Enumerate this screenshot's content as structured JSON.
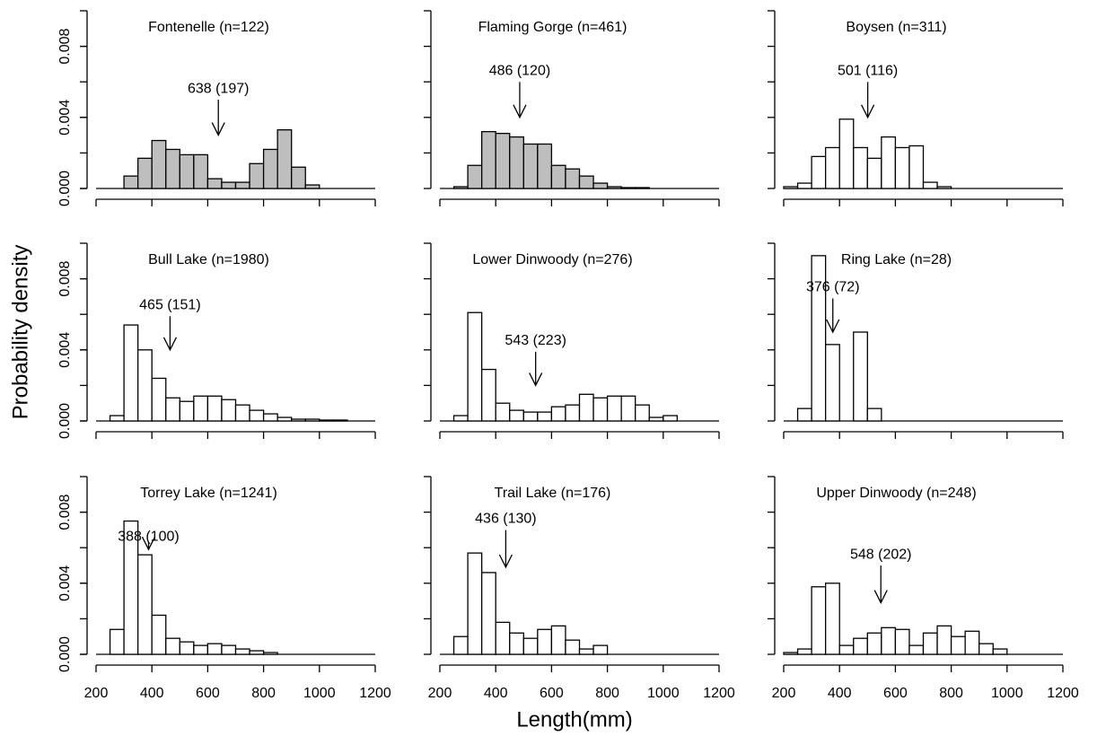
{
  "ylabel": "Probability density",
  "xlabel": "Length(mm)",
  "chart_data": [
    {
      "type": "histogram",
      "title": "Fontenelle (n=122)",
      "color": "#bebebe",
      "bins": [
        300,
        350,
        400,
        450,
        500,
        550,
        600,
        650,
        700,
        750,
        800,
        850,
        900,
        950,
        1000
      ],
      "values": [
        0.0007,
        0.0017,
        0.0027,
        0.0022,
        0.0019,
        0.0019,
        0.00055,
        0.00035,
        0.00035,
        0.0014,
        0.0022,
        0.0033,
        0.0012,
        0.0002
      ],
      "annotation": {
        "text": "638 (197)",
        "x": 638,
        "text_y": 0.0056,
        "tip_y": 0.003
      },
      "xlim": [
        200,
        1200
      ],
      "ylim": [
        0,
        0.01
      ],
      "xtickmarks": [
        200,
        400,
        600,
        800,
        1000,
        1200
      ],
      "ytickmarks": [
        0,
        0.002,
        0.004,
        0.006,
        0.008,
        0.01
      ],
      "yticks": [
        {
          "value": 0,
          "label": "0.000"
        },
        {
          "value": 0.004,
          "label": "0.004"
        },
        {
          "value": 0.008,
          "label": "0.008"
        }
      ]
    },
    {
      "type": "histogram",
      "title": "Flaming Gorge (n=461)",
      "color": "#bebebe",
      "bins": [
        250,
        300,
        350,
        400,
        450,
        500,
        550,
        600,
        650,
        700,
        750,
        800,
        850,
        900,
        950
      ],
      "values": [
        0.0001,
        0.0013,
        0.0032,
        0.0031,
        0.0029,
        0.0025,
        0.0025,
        0.0013,
        0.0011,
        0.0007,
        0.0003,
        0.0001,
        5e-05,
        5e-05
      ],
      "annotation": {
        "text": "486 (120)",
        "x": 486,
        "text_y": 0.0066,
        "tip_y": 0.004
      },
      "xlim": [
        200,
        1200
      ],
      "ylim": [
        0,
        0.01
      ],
      "xtickmarks": [
        200,
        400,
        600,
        800,
        1000,
        1200
      ],
      "ytickmarks": [
        0,
        0.002,
        0.004,
        0.006,
        0.008,
        0.01
      ]
    },
    {
      "type": "histogram",
      "title": "Boysen (n=311)",
      "color": "#ffffff",
      "bins": [
        200,
        250,
        300,
        350,
        400,
        450,
        500,
        550,
        600,
        650,
        700,
        750,
        800
      ],
      "values": [
        0.0001,
        0.0003,
        0.0018,
        0.0023,
        0.0039,
        0.0023,
        0.0017,
        0.0029,
        0.0023,
        0.0024,
        0.00035,
        0.0001
      ],
      "annotation": {
        "text": "501 (116)",
        "x": 501,
        "text_y": 0.0066,
        "tip_y": 0.004
      },
      "xlim": [
        200,
        1200
      ],
      "ylim": [
        0,
        0.01
      ],
      "xtickmarks": [
        200,
        400,
        600,
        800,
        1000,
        1200
      ],
      "ytickmarks": [
        0,
        0.002,
        0.004,
        0.006,
        0.008,
        0.01
      ]
    },
    {
      "type": "histogram",
      "title": "Bull Lake (n=1980)",
      "color": "#ffffff",
      "bins": [
        250,
        300,
        350,
        400,
        450,
        500,
        550,
        600,
        650,
        700,
        750,
        800,
        850,
        900,
        950,
        1000,
        1050,
        1100
      ],
      "values": [
        0.0003,
        0.0054,
        0.004,
        0.0024,
        0.0013,
        0.0011,
        0.0014,
        0.0014,
        0.0012,
        0.0009,
        0.0006,
        0.0004,
        0.0002,
        0.0001,
        0.0001,
        5e-05,
        5e-05
      ],
      "annotation": {
        "text": "465 (151)",
        "x": 465,
        "text_y": 0.0065,
        "tip_y": 0.004
      },
      "xlim": [
        200,
        1200
      ],
      "ylim": [
        0,
        0.01
      ],
      "xtickmarks": [
        200,
        400,
        600,
        800,
        1000,
        1200
      ],
      "ytickmarks": [
        0,
        0.002,
        0.004,
        0.006,
        0.008,
        0.01
      ],
      "yticks": [
        {
          "value": 0,
          "label": "0.000"
        },
        {
          "value": 0.004,
          "label": "0.004"
        },
        {
          "value": 0.008,
          "label": "0.008"
        }
      ]
    },
    {
      "type": "histogram",
      "title": "Lower Dinwoody (n=276)",
      "color": "#ffffff",
      "bins": [
        250,
        300,
        350,
        400,
        450,
        500,
        550,
        600,
        650,
        700,
        750,
        800,
        850,
        900,
        950,
        1000,
        1050
      ],
      "values": [
        0.0003,
        0.0061,
        0.0029,
        0.001,
        0.0006,
        0.0005,
        0.0005,
        0.0008,
        0.0009,
        0.0015,
        0.0013,
        0.0014,
        0.0014,
        0.0009,
        0.0002,
        0.0003
      ],
      "annotation": {
        "text": "543 (223)",
        "x": 543,
        "text_y": 0.0045,
        "tip_y": 0.002
      },
      "xlim": [
        200,
        1200
      ],
      "ylim": [
        0,
        0.01
      ],
      "xtickmarks": [
        200,
        400,
        600,
        800,
        1000,
        1200
      ],
      "ytickmarks": [
        0,
        0.002,
        0.004,
        0.006,
        0.008,
        0.01
      ]
    },
    {
      "type": "histogram",
      "title": "Ring Lake (n=28)",
      "color": "#ffffff",
      "bins": [
        250,
        300,
        350,
        400,
        450,
        500,
        550
      ],
      "values": [
        0.0007,
        0.0093,
        0.0043,
        0,
        0.005,
        0.0007
      ],
      "annotation": {
        "text": "376 (72)",
        "x": 376,
        "text_y": 0.0075,
        "tip_y": 0.005
      },
      "xlim": [
        200,
        1200
      ],
      "ylim": [
        0,
        0.01
      ],
      "xtickmarks": [
        200,
        400,
        600,
        800,
        1000,
        1200
      ],
      "ytickmarks": [
        0,
        0.002,
        0.004,
        0.006,
        0.008,
        0.01
      ]
    },
    {
      "type": "histogram",
      "title": "Torrey Lake (n=1241)",
      "color": "#ffffff",
      "bins": [
        250,
        300,
        350,
        400,
        450,
        500,
        550,
        600,
        650,
        700,
        750,
        800,
        850
      ],
      "values": [
        0.0014,
        0.0075,
        0.0056,
        0.0022,
        0.0009,
        0.0007,
        0.0005,
        0.0006,
        0.0005,
        0.0003,
        0.0002,
        0.0001
      ],
      "annotation": {
        "text": "388 (100)",
        "x": 388,
        "text_y": 0.0066,
        "tip_y": 0.0059
      },
      "xlim": [
        200,
        1200
      ],
      "ylim": [
        0,
        0.01
      ],
      "xticks": [
        200,
        400,
        600,
        800,
        1000,
        1200
      ],
      "ytickmarks": [
        0,
        0.002,
        0.004,
        0.006,
        0.008,
        0.01
      ],
      "yticks": [
        {
          "value": 0,
          "label": "0.000"
        },
        {
          "value": 0.004,
          "label": "0.004"
        },
        {
          "value": 0.008,
          "label": "0.008"
        }
      ]
    },
    {
      "type": "histogram",
      "title": "Trail Lake (n=176)",
      "color": "#ffffff",
      "bins": [
        250,
        300,
        350,
        400,
        450,
        500,
        550,
        600,
        650,
        700,
        750,
        800
      ],
      "values": [
        0.001,
        0.0057,
        0.0046,
        0.0018,
        0.0012,
        0.0009,
        0.0014,
        0.0016,
        0.0008,
        0.0003,
        0.0005
      ],
      "annotation": {
        "text": "436 (130)",
        "x": 436,
        "text_y": 0.0076,
        "tip_y": 0.0049
      },
      "xlim": [
        200,
        1200
      ],
      "ylim": [
        0,
        0.01
      ],
      "xticks": [
        200,
        400,
        600,
        800,
        1000,
        1200
      ],
      "ytickmarks": [
        0,
        0.002,
        0.004,
        0.006,
        0.008,
        0.01
      ]
    },
    {
      "type": "histogram",
      "title": "Upper Dinwoody (n=248)",
      "color": "#ffffff",
      "bins": [
        200,
        250,
        300,
        350,
        400,
        450,
        500,
        550,
        600,
        650,
        700,
        750,
        800,
        850,
        900,
        950,
        1000
      ],
      "values": [
        0.0001,
        0.0003,
        0.0038,
        0.004,
        0.0005,
        0.0009,
        0.0012,
        0.0015,
        0.0014,
        0.0005,
        0.0012,
        0.0016,
        0.001,
        0.0013,
        0.0006,
        0.0003
      ],
      "annotation": {
        "text": "548 (202)",
        "x": 548,
        "text_y": 0.0056,
        "tip_y": 0.0029
      },
      "xlim": [
        200,
        1200
      ],
      "ylim": [
        0,
        0.01
      ],
      "xticks": [
        200,
        400,
        600,
        800,
        1000,
        1200
      ],
      "ytickmarks": [
        0,
        0.002,
        0.004,
        0.006,
        0.008,
        0.01
      ]
    }
  ]
}
